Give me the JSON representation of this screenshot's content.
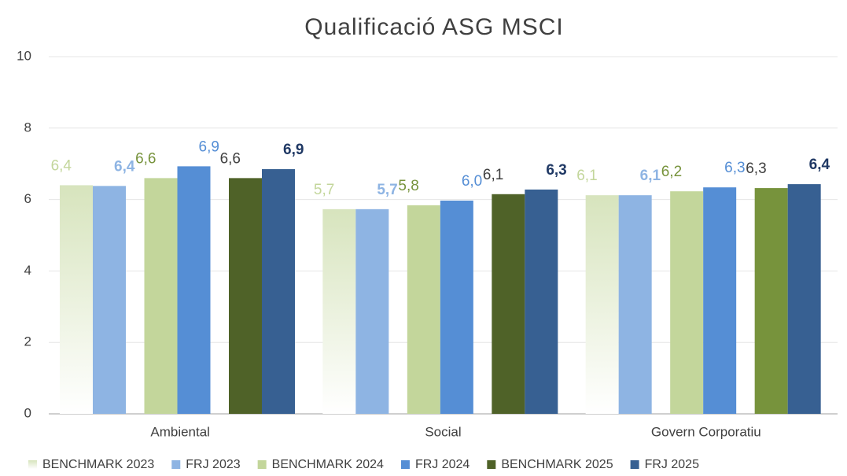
{
  "chart_data": {
    "type": "bar",
    "title": "Qualificació ASG MSCI",
    "categories": [
      "Ambiental",
      "Social",
      "Govern Corporatiu"
    ],
    "ylim": [
      0,
      10
    ],
    "yticks": [
      0,
      2,
      4,
      6,
      8,
      10
    ],
    "grid": true,
    "legend": "bottom",
    "series": [
      {
        "name": "BENCHMARK 2023",
        "color": "#d7e4bd",
        "gradient": true,
        "label_color": "#c3d69b",
        "label_bold": false,
        "values": [
          6.4,
          5.73,
          6.12
        ],
        "value_labels": [
          "6,4",
          "5,7",
          "6,1"
        ]
      },
      {
        "name": "FRJ 2023",
        "color": "#8eb4e3",
        "label_color": "#8eb4e3",
        "label_bold": true,
        "values": [
          6.38,
          5.73,
          6.12
        ],
        "value_labels": [
          "6,4",
          "5,7",
          "6,1"
        ]
      },
      {
        "name": "BENCHMARK 2024",
        "color": "#c3d69b",
        "label_color": "#77933c",
        "label_bold": false,
        "values": [
          6.6,
          5.84,
          6.23
        ],
        "value_labels": [
          "6,6",
          "5,8",
          "6,2"
        ]
      },
      {
        "name": "FRJ 2024",
        "color": "#558ed5",
        "label_color": "#558ed5",
        "label_bold": false,
        "values": [
          6.93,
          5.97,
          6.34
        ],
        "value_labels": [
          "6,9",
          "6,0",
          "6,3"
        ]
      },
      {
        "name": "BENCHMARK 2025",
        "color": "#4f6228",
        "colors": [
          "#4f6228",
          "#4f6228",
          "#77933c"
        ],
        "label_color": "#404040",
        "label_bold": false,
        "values": [
          6.6,
          6.15,
          6.32
        ],
        "value_labels": [
          "6,6",
          "6,1",
          "6,3"
        ]
      },
      {
        "name": "FRJ 2025",
        "color": "#376092",
        "label_color": "#1f3864",
        "label_bold": true,
        "values": [
          6.85,
          6.28,
          6.43
        ],
        "value_labels": [
          "6,9",
          "6,3",
          "6,4"
        ]
      }
    ]
  }
}
